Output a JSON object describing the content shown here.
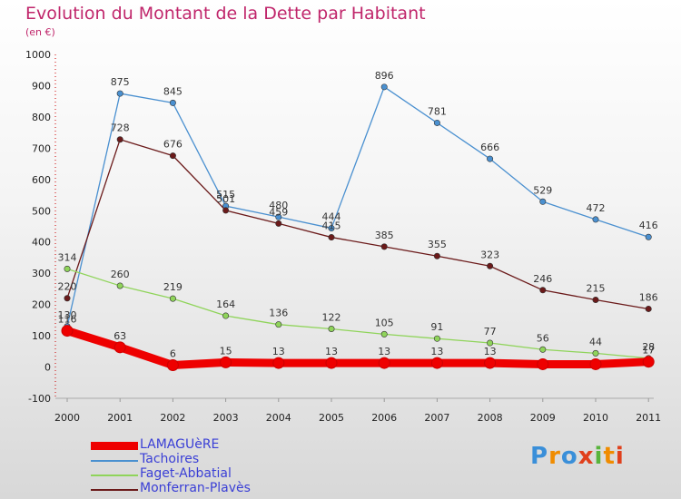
{
  "title": "Evolution du Montant de la Dette par Habitant",
  "subtitle": "(en €)",
  "logo": {
    "text": "Proxiti",
    "colors": [
      "#3a8fd9",
      "#f08c00",
      "#58b43c",
      "#e0401c"
    ]
  },
  "chart_data": {
    "type": "line",
    "x": [
      "2000",
      "2001",
      "2002",
      "2003",
      "2004",
      "2005",
      "2006",
      "2007",
      "2008",
      "2009",
      "2010",
      "2011"
    ],
    "ylim": [
      -100,
      1000
    ],
    "yticks": [
      -100,
      0,
      100,
      200,
      300,
      400,
      500,
      600,
      700,
      800,
      900,
      1000
    ],
    "grid": false,
    "legend_position": "bottom-left",
    "series": [
      {
        "name": "LAMAGUèRE",
        "color": "#ee0000",
        "values": [
          116,
          63,
          6,
          15,
          13,
          13,
          13,
          13,
          13,
          9,
          9,
          17
        ],
        "labels": [
          "116",
          "63",
          "6",
          "15",
          "13",
          "13",
          "13",
          "13",
          "13",
          "",
          "",
          "17"
        ]
      },
      {
        "name": "Tachoires",
        "color": "#4a90d0",
        "values": [
          130,
          875,
          845,
          515,
          480,
          444,
          896,
          781,
          666,
          529,
          472,
          416
        ],
        "labels": [
          "130",
          "875",
          "845",
          "515",
          "480",
          "444",
          "896",
          "781",
          "666",
          "529",
          "472",
          "416"
        ]
      },
      {
        "name": "Faget-Abbatial",
        "color": "#8fd45a",
        "values": [
          314,
          260,
          219,
          164,
          136,
          122,
          105,
          91,
          77,
          56,
          44,
          28
        ],
        "labels": [
          "314",
          "260",
          "219",
          "164",
          "136",
          "122",
          "105",
          "91",
          "77",
          "56",
          "44",
          "28"
        ]
      },
      {
        "name": "Monferran-Plavès",
        "color": "#6b1a1a",
        "values": [
          220,
          728,
          676,
          501,
          459,
          415,
          385,
          355,
          323,
          246,
          215,
          186
        ],
        "labels": [
          "220",
          "728",
          "676",
          "501",
          "459",
          "415",
          "385",
          "355",
          "323",
          "246",
          "215",
          "186"
        ]
      }
    ]
  }
}
